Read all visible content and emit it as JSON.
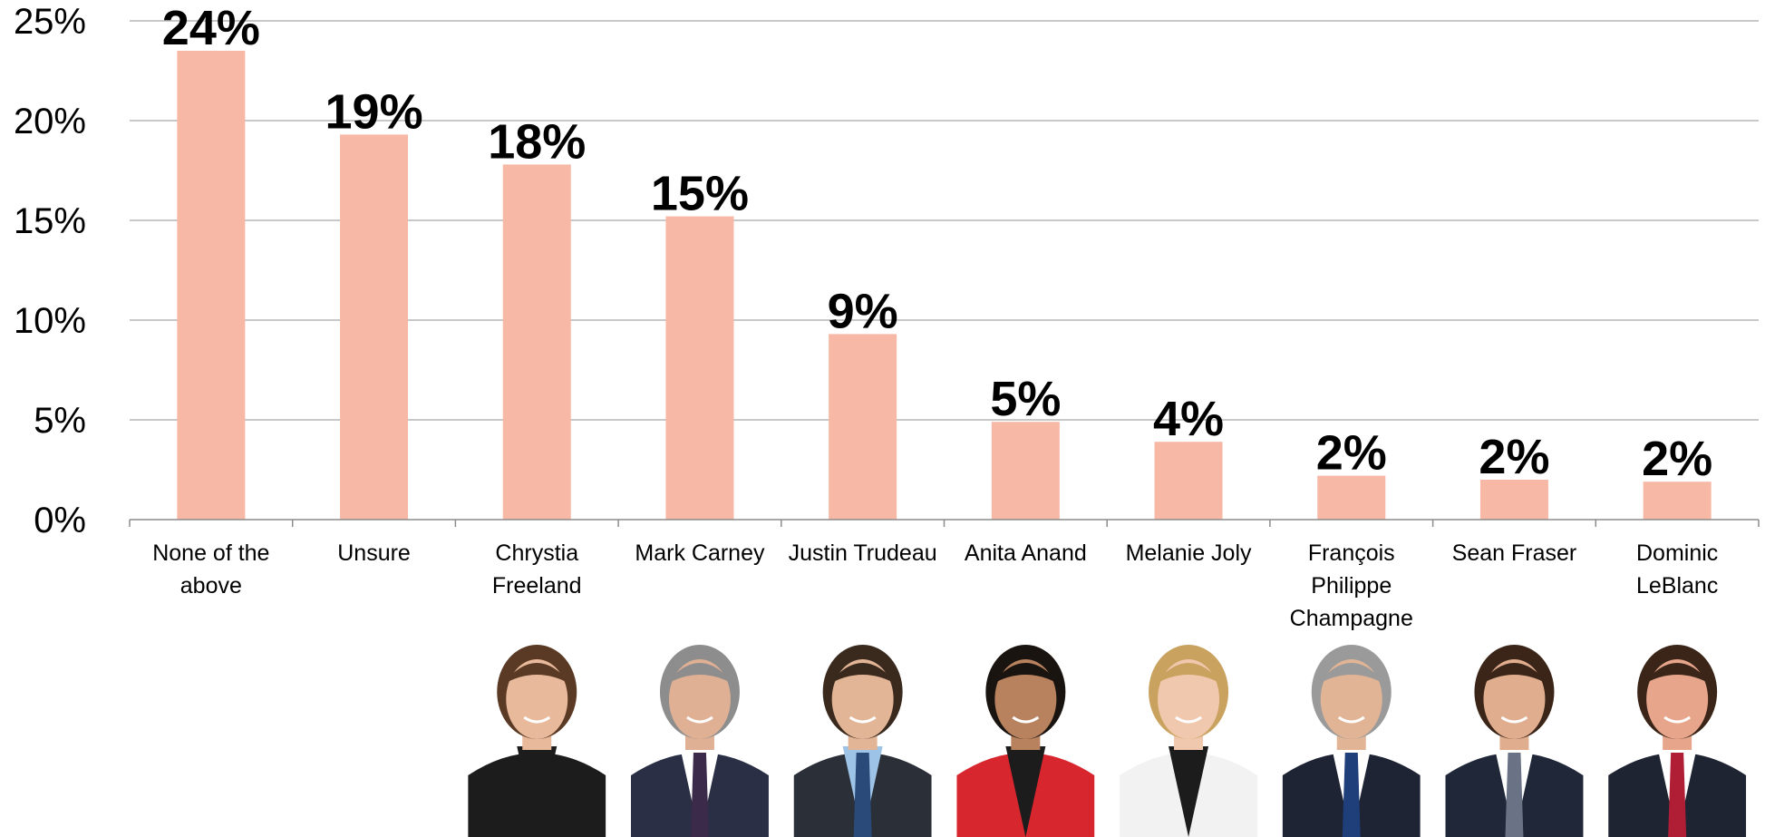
{
  "chart_data": {
    "type": "bar",
    "title": "",
    "xlabel": "",
    "ylabel": "",
    "ylim": [
      0,
      25
    ],
    "y_ticks": [
      0,
      5,
      10,
      15,
      20,
      25
    ],
    "y_tick_labels": [
      "0%",
      "5%",
      "10%",
      "15%",
      "20%",
      "25%"
    ],
    "grid": true,
    "legend": "none",
    "bar_color": "#F7B8A6",
    "categories": [
      "None of the above",
      "Unsure",
      "Chrystia Freeland",
      "Mark Carney",
      "Justin Trudeau",
      "Anita Anand",
      "Melanie Joly",
      "François Philippe Champagne",
      "Sean Fraser",
      "Dominic LeBlanc"
    ],
    "category_label_lines": [
      [
        "None of the",
        "above"
      ],
      [
        "Unsure"
      ],
      [
        "Chrystia",
        "Freeland"
      ],
      [
        "Mark Carney"
      ],
      [
        "Justin Trudeau"
      ],
      [
        "Anita Anand"
      ],
      [
        "Melanie Joly"
      ],
      [
        "François",
        "Philippe",
        "Champagne"
      ],
      [
        "Sean Fraser"
      ],
      [
        "Dominic",
        "LeBlanc"
      ]
    ],
    "values": [
      23.5,
      19.3,
      17.8,
      15.2,
      9.3,
      4.9,
      3.9,
      2.2,
      2.0,
      1.9
    ],
    "data_labels": [
      "24%",
      "19%",
      "18%",
      "15%",
      "9%",
      "5%",
      "4%",
      "2%",
      "2%",
      "2%"
    ],
    "portraits": [
      {
        "category": "Chrystia Freeland",
        "icon": "portrait-photo-icon",
        "suit": "#1c1c1c",
        "hair": "#5a3a24",
        "skin": "#e9b99b",
        "shirt": "#1c1c1c",
        "tie": ""
      },
      {
        "category": "Mark Carney",
        "icon": "portrait-photo-icon",
        "suit": "#2a2f45",
        "hair": "#8d8d8d",
        "skin": "#e0b095",
        "shirt": "#ffffff",
        "tie": "#3b2a4a"
      },
      {
        "category": "Justin Trudeau",
        "icon": "portrait-photo-icon",
        "suit": "#2b2f38",
        "hair": "#3a2a1e",
        "skin": "#e3b597",
        "shirt": "#9dc3e6",
        "tie": "#2a4a7a"
      },
      {
        "category": "Anita Anand",
        "icon": "portrait-photo-icon",
        "suit": "#d7262e",
        "hair": "#1a1410",
        "skin": "#b9825f",
        "shirt": "#1c1c1c",
        "tie": ""
      },
      {
        "category": "Melanie Joly",
        "icon": "portrait-photo-icon",
        "suit": "#f2f2f2",
        "hair": "#c9a25f",
        "skin": "#f0c8ad",
        "shirt": "#1c1c1c",
        "tie": ""
      },
      {
        "category": "François Philippe Champagne",
        "icon": "portrait-photo-icon",
        "suit": "#1e2433",
        "hair": "#9a9a9a",
        "skin": "#e2b496",
        "shirt": "#ffffff",
        "tie": "#1f3f7a"
      },
      {
        "category": "Sean Fraser",
        "icon": "portrait-photo-icon",
        "suit": "#1f2738",
        "hair": "#3a2518",
        "skin": "#e0ad8e",
        "shirt": "#ffffff",
        "tie": "#6a7385"
      },
      {
        "category": "Dominic LeBlanc",
        "icon": "portrait-photo-icon",
        "suit": "#1f2433",
        "hair": "#3a2518",
        "skin": "#e7a58c",
        "shirt": "#ffffff",
        "tie": "#b01e36"
      }
    ]
  }
}
